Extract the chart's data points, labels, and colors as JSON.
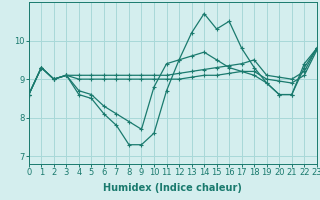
{
  "title": "",
  "xlabel": "Humidex (Indice chaleur)",
  "ylabel": "",
  "bg_color": "#d4eeee",
  "grid_color": "#a8d8d8",
  "line_color": "#1a7a6e",
  "x_values": [
    0,
    1,
    2,
    3,
    4,
    5,
    6,
    7,
    8,
    9,
    10,
    11,
    12,
    13,
    14,
    15,
    16,
    17,
    18,
    19,
    20,
    21,
    22,
    23
  ],
  "lines": [
    [
      8.6,
      9.3,
      9.0,
      9.1,
      8.6,
      8.5,
      8.1,
      7.8,
      7.3,
      7.3,
      7.6,
      8.7,
      9.5,
      10.2,
      10.7,
      10.3,
      10.5,
      9.8,
      9.3,
      8.9,
      8.6,
      8.6,
      9.4,
      9.8
    ],
    [
      8.6,
      9.3,
      9.0,
      9.1,
      8.7,
      8.6,
      8.3,
      8.1,
      7.9,
      7.7,
      8.8,
      9.4,
      9.5,
      9.6,
      9.7,
      9.5,
      9.3,
      9.2,
      9.1,
      8.9,
      8.6,
      8.6,
      9.3,
      9.8
    ],
    [
      8.6,
      9.3,
      9.0,
      9.1,
      9.0,
      9.0,
      9.0,
      9.0,
      9.0,
      9.0,
      9.0,
      9.0,
      9.0,
      9.05,
      9.1,
      9.1,
      9.15,
      9.2,
      9.2,
      9.0,
      8.95,
      8.9,
      9.1,
      9.75
    ],
    [
      8.6,
      9.3,
      9.0,
      9.1,
      9.1,
      9.1,
      9.1,
      9.1,
      9.1,
      9.1,
      9.1,
      9.1,
      9.15,
      9.2,
      9.25,
      9.3,
      9.35,
      9.4,
      9.5,
      9.1,
      9.05,
      9.0,
      9.2,
      9.8
    ]
  ],
  "xlim": [
    0,
    23
  ],
  "ylim": [
    6.8,
    11.0
  ],
  "yticks": [
    7,
    8,
    9,
    10
  ],
  "xticks": [
    0,
    1,
    2,
    3,
    4,
    5,
    6,
    7,
    8,
    9,
    10,
    11,
    12,
    13,
    14,
    15,
    16,
    17,
    18,
    19,
    20,
    21,
    22,
    23
  ],
  "xtick_labels": [
    "0",
    "1",
    "2",
    "3",
    "4",
    "5",
    "6",
    "7",
    "8",
    "9",
    "10",
    "11",
    "12",
    "13",
    "14",
    "15",
    "16",
    "17",
    "18",
    "19",
    "20",
    "21",
    "22",
    "23"
  ],
  "fontsize_xlabel": 7,
  "fontsize_ticks": 6,
  "linewidth": 0.9,
  "markersize": 2.5,
  "marker": "+"
}
